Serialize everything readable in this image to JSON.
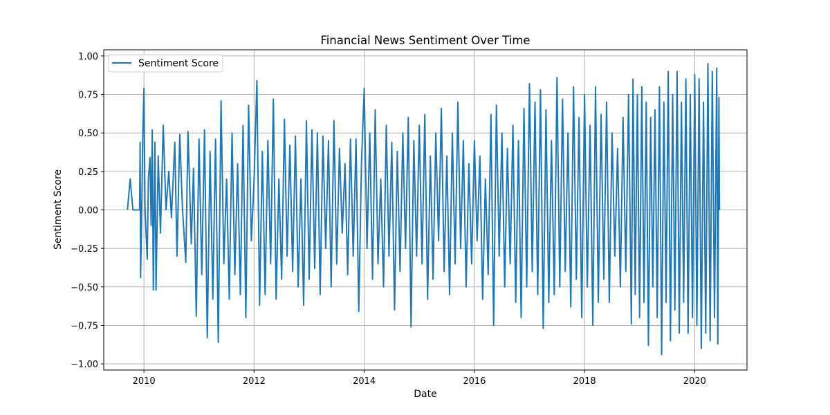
{
  "chart_data": {
    "type": "line",
    "title": "Financial News Sentiment Over Time",
    "xlabel": "Date",
    "ylabel": "Sentiment Score",
    "xlim": [
      2009.25,
      2010.0,
      2021.0
    ],
    "x_range": [
      2009.27,
      2020.95
    ],
    "ylim": [
      -1.04,
      1.04
    ],
    "x_ticks": [
      2010,
      2012,
      2014,
      2016,
      2018,
      2020
    ],
    "y_ticks": [
      -1.0,
      -0.75,
      -0.5,
      -0.25,
      0.0,
      0.25,
      0.5,
      0.75,
      1.0
    ],
    "y_tick_labels": [
      "−1.00",
      "−0.75",
      "−0.50",
      "−0.25",
      "0.00",
      "0.25",
      "0.50",
      "0.75",
      "1.00"
    ],
    "grid": true,
    "legend_position": "top-left",
    "series": [
      {
        "name": "Sentiment Score",
        "color": "#1f77b4",
        "points": [
          [
            2009.7,
            0.0
          ],
          [
            2009.75,
            0.2
          ],
          [
            2009.8,
            0.0
          ],
          [
            2009.92,
            0.0
          ],
          [
            2009.93,
            0.44
          ],
          [
            2009.94,
            -0.44
          ],
          [
            2009.96,
            0.0
          ],
          [
            2009.98,
            0.5
          ],
          [
            2010.0,
            0.79
          ],
          [
            2010.02,
            0.0
          ],
          [
            2010.06,
            -0.32
          ],
          [
            2010.08,
            0.2
          ],
          [
            2010.11,
            0.34
          ],
          [
            2010.13,
            -0.1
          ],
          [
            2010.15,
            0.52
          ],
          [
            2010.17,
            -0.52
          ],
          [
            2010.2,
            0.44
          ],
          [
            2010.22,
            -0.52
          ],
          [
            2010.26,
            0.35
          ],
          [
            2010.3,
            -0.15
          ],
          [
            2010.35,
            0.55
          ],
          [
            2010.4,
            0.0
          ],
          [
            2010.45,
            0.25
          ],
          [
            2010.5,
            -0.05
          ],
          [
            2010.56,
            0.44
          ],
          [
            2010.6,
            -0.3
          ],
          [
            2010.65,
            0.49
          ],
          [
            2010.7,
            0.0
          ],
          [
            2010.76,
            -0.34
          ],
          [
            2010.8,
            0.51
          ],
          [
            2010.86,
            -0.22
          ],
          [
            2010.9,
            0.27
          ],
          [
            2010.95,
            -0.69
          ],
          [
            2011.0,
            0.46
          ],
          [
            2011.05,
            -0.42
          ],
          [
            2011.1,
            0.52
          ],
          [
            2011.15,
            -0.83
          ],
          [
            2011.2,
            0.38
          ],
          [
            2011.25,
            -0.58
          ],
          [
            2011.3,
            0.46
          ],
          [
            2011.35,
            -0.86
          ],
          [
            2011.4,
            0.71
          ],
          [
            2011.45,
            -0.35
          ],
          [
            2011.5,
            0.2
          ],
          [
            2011.55,
            -0.58
          ],
          [
            2011.6,
            0.5
          ],
          [
            2011.65,
            -0.42
          ],
          [
            2011.7,
            0.3
          ],
          [
            2011.75,
            -0.55
          ],
          [
            2011.8,
            0.55
          ],
          [
            2011.85,
            -0.7
          ],
          [
            2011.9,
            0.68
          ],
          [
            2011.95,
            -0.2
          ],
          [
            2012.0,
            0.2
          ],
          [
            2012.05,
            0.84
          ],
          [
            2012.1,
            -0.62
          ],
          [
            2012.15,
            0.38
          ],
          [
            2012.2,
            -0.55
          ],
          [
            2012.25,
            0.45
          ],
          [
            2012.3,
            -0.35
          ],
          [
            2012.35,
            0.72
          ],
          [
            2012.4,
            -0.58
          ],
          [
            2012.45,
            0.2
          ],
          [
            2012.5,
            -0.45
          ],
          [
            2012.55,
            0.59
          ],
          [
            2012.6,
            -0.3
          ],
          [
            2012.65,
            0.42
          ],
          [
            2012.7,
            -0.4
          ],
          [
            2012.75,
            0.48
          ],
          [
            2012.8,
            -0.5
          ],
          [
            2012.85,
            0.2
          ],
          [
            2012.9,
            -0.62
          ],
          [
            2012.95,
            0.58
          ],
          [
            2013.0,
            -0.45
          ],
          [
            2013.05,
            0.52
          ],
          [
            2013.1,
            -0.38
          ],
          [
            2013.15,
            0.5
          ],
          [
            2013.2,
            -0.55
          ],
          [
            2013.25,
            0.48
          ],
          [
            2013.3,
            -0.25
          ],
          [
            2013.35,
            0.45
          ],
          [
            2013.4,
            -0.5
          ],
          [
            2013.45,
            0.58
          ],
          [
            2013.5,
            -0.35
          ],
          [
            2013.55,
            0.4
          ],
          [
            2013.6,
            -0.15
          ],
          [
            2013.65,
            0.3
          ],
          [
            2013.7,
            -0.42
          ],
          [
            2013.75,
            0.46
          ],
          [
            2013.8,
            -0.3
          ],
          [
            2013.85,
            0.46
          ],
          [
            2013.9,
            -0.66
          ],
          [
            2013.95,
            0.3
          ],
          [
            2014.0,
            0.79
          ],
          [
            2014.05,
            -0.25
          ],
          [
            2014.1,
            0.5
          ],
          [
            2014.15,
            -0.45
          ],
          [
            2014.2,
            0.65
          ],
          [
            2014.25,
            -0.35
          ],
          [
            2014.3,
            0.2
          ],
          [
            2014.35,
            -0.5
          ],
          [
            2014.4,
            0.55
          ],
          [
            2014.45,
            -0.3
          ],
          [
            2014.5,
            0.44
          ],
          [
            2014.55,
            -0.65
          ],
          [
            2014.6,
            0.38
          ],
          [
            2014.65,
            -0.4
          ],
          [
            2014.7,
            0.5
          ],
          [
            2014.75,
            -0.25
          ],
          [
            2014.8,
            0.6
          ],
          [
            2014.85,
            -0.76
          ],
          [
            2014.9,
            0.45
          ],
          [
            2014.95,
            -0.3
          ],
          [
            2015.0,
            0.55
          ],
          [
            2015.05,
            -0.35
          ],
          [
            2015.1,
            0.62
          ],
          [
            2015.15,
            -0.58
          ],
          [
            2015.2,
            0.35
          ],
          [
            2015.25,
            -0.45
          ],
          [
            2015.3,
            0.5
          ],
          [
            2015.35,
            -0.2
          ],
          [
            2015.4,
            0.66
          ],
          [
            2015.45,
            -0.4
          ],
          [
            2015.5,
            0.35
          ],
          [
            2015.55,
            -0.55
          ],
          [
            2015.6,
            0.5
          ],
          [
            2015.65,
            -0.35
          ],
          [
            2015.7,
            0.7
          ],
          [
            2015.75,
            -0.25
          ],
          [
            2015.8,
            0.45
          ],
          [
            2015.85,
            -0.5
          ],
          [
            2015.9,
            0.3
          ],
          [
            2015.95,
            -0.35
          ],
          [
            2016.0,
            0.45
          ],
          [
            2016.05,
            -0.2
          ],
          [
            2016.1,
            0.35
          ],
          [
            2016.15,
            -0.58
          ],
          [
            2016.2,
            0.2
          ],
          [
            2016.25,
            -0.42
          ],
          [
            2016.3,
            0.62
          ],
          [
            2016.35,
            -0.75
          ],
          [
            2016.4,
            0.68
          ],
          [
            2016.45,
            -0.3
          ],
          [
            2016.5,
            0.5
          ],
          [
            2016.55,
            -0.5
          ],
          [
            2016.6,
            0.4
          ],
          [
            2016.65,
            -0.35
          ],
          [
            2016.7,
            0.55
          ],
          [
            2016.75,
            -0.6
          ],
          [
            2016.8,
            0.45
          ],
          [
            2016.85,
            -0.7
          ],
          [
            2016.9,
            0.66
          ],
          [
            2016.95,
            -0.5
          ],
          [
            2017.0,
            0.82
          ],
          [
            2017.05,
            -0.4
          ],
          [
            2017.1,
            0.7
          ],
          [
            2017.15,
            -0.55
          ],
          [
            2017.2,
            0.78
          ],
          [
            2017.25,
            -0.77
          ],
          [
            2017.3,
            0.65
          ],
          [
            2017.35,
            -0.6
          ],
          [
            2017.4,
            0.45
          ],
          [
            2017.45,
            -0.55
          ],
          [
            2017.5,
            0.86
          ],
          [
            2017.55,
            -0.5
          ],
          [
            2017.6,
            0.72
          ],
          [
            2017.65,
            -0.4
          ],
          [
            2017.7,
            0.5
          ],
          [
            2017.75,
            -0.63
          ],
          [
            2017.8,
            0.8
          ],
          [
            2017.85,
            -0.45
          ],
          [
            2017.9,
            0.6
          ],
          [
            2017.95,
            -0.7
          ],
          [
            2018.0,
            0.75
          ],
          [
            2018.05,
            -0.5
          ],
          [
            2018.1,
            0.55
          ],
          [
            2018.15,
            -0.75
          ],
          [
            2018.2,
            0.8
          ],
          [
            2018.25,
            -0.6
          ],
          [
            2018.3,
            0.62
          ],
          [
            2018.35,
            -0.45
          ],
          [
            2018.4,
            0.7
          ],
          [
            2018.45,
            -0.6
          ],
          [
            2018.5,
            0.5
          ],
          [
            2018.55,
            -0.3
          ],
          [
            2018.6,
            0.4
          ],
          [
            2018.65,
            -0.5
          ],
          [
            2018.7,
            0.6
          ],
          [
            2018.75,
            -0.4
          ],
          [
            2018.8,
            0.75
          ],
          [
            2018.85,
            -0.74
          ],
          [
            2018.88,
            0.85
          ],
          [
            2018.92,
            -0.55
          ],
          [
            2018.96,
            0.75
          ],
          [
            2019.0,
            -0.7
          ],
          [
            2019.04,
            0.8
          ],
          [
            2019.08,
            -0.6
          ],
          [
            2019.12,
            0.7
          ],
          [
            2019.16,
            -0.88
          ],
          [
            2019.2,
            0.6
          ],
          [
            2019.24,
            -0.5
          ],
          [
            2019.28,
            0.65
          ],
          [
            2019.32,
            -0.7
          ],
          [
            2019.36,
            0.8
          ],
          [
            2019.4,
            -0.94
          ],
          [
            2019.44,
            0.7
          ],
          [
            2019.48,
            -0.6
          ],
          [
            2019.52,
            0.9
          ],
          [
            2019.56,
            -0.85
          ],
          [
            2019.6,
            0.75
          ],
          [
            2019.64,
            -0.65
          ],
          [
            2019.68,
            0.9
          ],
          [
            2019.72,
            -0.8
          ],
          [
            2019.76,
            0.7
          ],
          [
            2019.8,
            -0.6
          ],
          [
            2019.84,
            0.85
          ],
          [
            2019.88,
            -0.8
          ],
          [
            2019.92,
            0.75
          ],
          [
            2019.96,
            -0.7
          ],
          [
            2020.0,
            0.88
          ],
          [
            2020.04,
            -0.75
          ],
          [
            2020.08,
            0.85
          ],
          [
            2020.12,
            -0.9
          ],
          [
            2020.16,
            0.7
          ],
          [
            2020.2,
            -0.8
          ],
          [
            2020.24,
            0.95
          ],
          [
            2020.28,
            -0.85
          ],
          [
            2020.32,
            0.9
          ],
          [
            2020.36,
            -0.7
          ],
          [
            2020.4,
            0.92
          ],
          [
            2020.42,
            -0.87
          ],
          [
            2020.44,
            0.73
          ],
          [
            2020.45,
            0.0
          ]
        ]
      }
    ]
  }
}
